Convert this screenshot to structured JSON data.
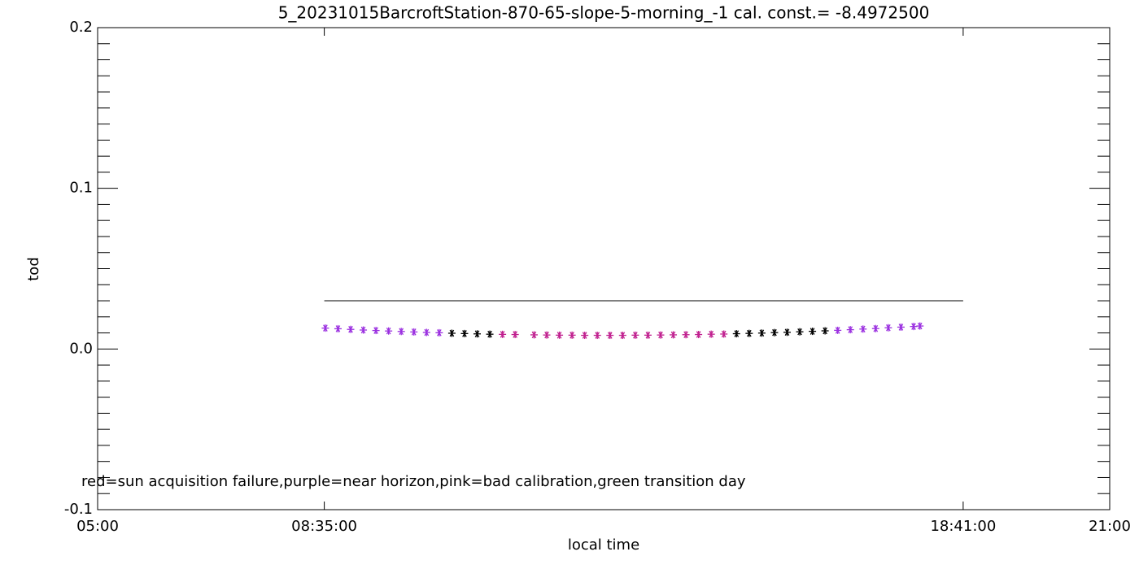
{
  "chart_data": {
    "type": "scatter",
    "title": "5_20231015BarcroftStation-870-65-slope-5-morning_-1 cal. const.= -8.4972500",
    "x_label": "local time",
    "y_label": "tod",
    "annotation": "red=sun acquisition failure,purple=near horizon,pink=bad calibration,green transition day",
    "xlim": [
      5,
      21
    ],
    "xticks": [
      {
        "value": 5,
        "label": "05:00"
      },
      {
        "value": 8.583333,
        "label": "08:35:00"
      },
      {
        "value": 18.683333,
        "label": "18:41:00"
      },
      {
        "value": 21,
        "label": "21:00"
      }
    ],
    "ylim": [
      -0.1,
      0.2
    ],
    "yticks": [
      -0.1,
      {
        "value": 0,
        "label": "0.0"
      },
      0.1,
      0.2
    ],
    "reference_line": {
      "y": 0.03,
      "x": [
        8.583333,
        18.683333
      ],
      "color": "#000000"
    },
    "series": [
      {
        "color": "#9b30e0",
        "x": [
          8.6,
          8.8,
          9.0,
          9.2,
          9.4,
          9.6,
          9.8,
          10.0,
          10.2,
          10.4
        ],
        "values": [
          0.013,
          0.0126,
          0.0122,
          0.0118,
          0.0115,
          0.0112,
          0.0109,
          0.0106,
          0.0103,
          0.0101
        ]
      },
      {
        "color": "#000000",
        "x": [
          10.6,
          10.8,
          11.0,
          11.2
        ],
        "values": [
          0.0098,
          0.0096,
          0.0094,
          0.0092
        ]
      },
      {
        "color": "#c0208f",
        "x": [
          11.4,
          11.6,
          11.9,
          12.1,
          12.3,
          12.5,
          12.7,
          12.9,
          13.1,
          13.3,
          13.5,
          13.7,
          13.9,
          14.1,
          14.3,
          14.5,
          14.7,
          14.9
        ],
        "values": [
          0.0091,
          0.009,
          0.0088,
          0.0087,
          0.0086,
          0.0086,
          0.0085,
          0.0085,
          0.0085,
          0.0085,
          0.0086,
          0.0086,
          0.0087,
          0.0088,
          0.0089,
          0.009,
          0.0092,
          0.0093
        ]
      },
      {
        "color": "#000000",
        "x": [
          15.1,
          15.3,
          15.5,
          15.7,
          15.9,
          16.1,
          16.3,
          16.5
        ],
        "values": [
          0.0095,
          0.0097,
          0.0099,
          0.0102,
          0.0104,
          0.0107,
          0.011,
          0.0113
        ]
      },
      {
        "color": "#9b30e0",
        "x": [
          16.7,
          16.9,
          17.1,
          17.3,
          17.5,
          17.7,
          17.9,
          18.0
        ],
        "values": [
          0.0116,
          0.012,
          0.0124,
          0.0127,
          0.0132,
          0.0136,
          0.014,
          0.0143
        ]
      }
    ]
  }
}
